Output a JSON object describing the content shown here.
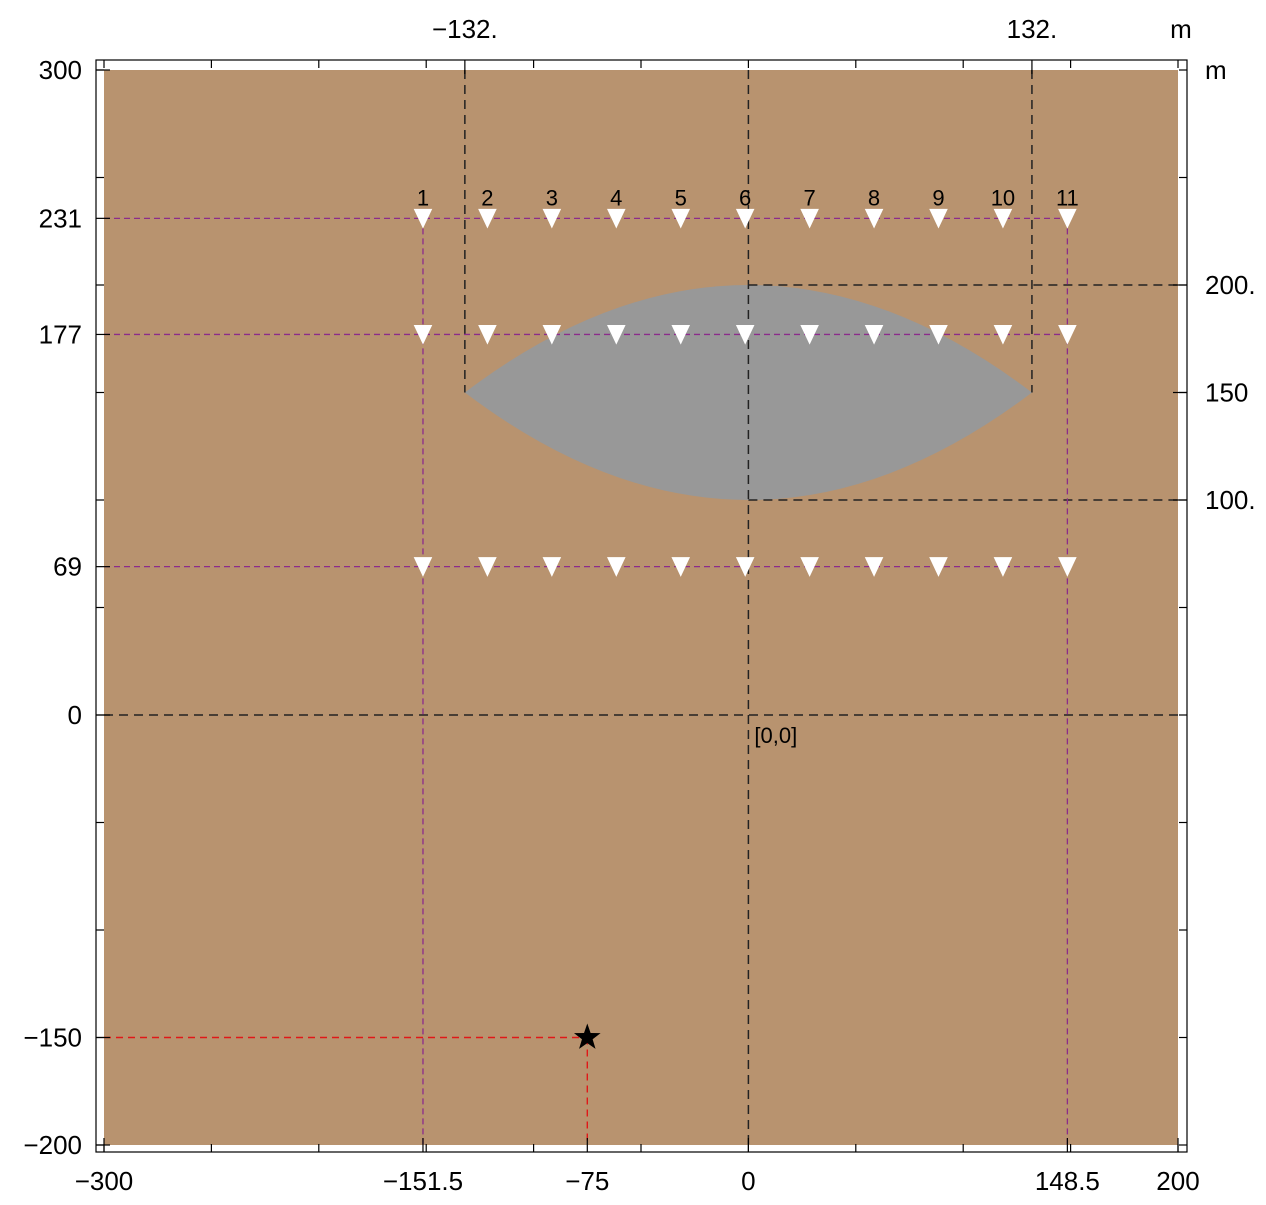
{
  "colors": {
    "ground": "#b8936f",
    "lens": "#989898",
    "grid_line": "#8b2c8b",
    "guide_line": "#222222",
    "source_line": "#e01818",
    "receiver_fill": "#ffffff",
    "source_mark": "#000000",
    "frame": "#000000"
  },
  "units": {
    "top": "m",
    "right": "m"
  },
  "axes": {
    "x_range": [
      -300,
      200
    ],
    "y_range": [
      -200,
      300
    ],
    "bottom_ticks": [
      {
        "value": -300,
        "label": "−300"
      },
      {
        "value": -151.5,
        "label": "−151.5"
      },
      {
        "value": -75,
        "label": "−75"
      },
      {
        "value": 0,
        "label": "0"
      },
      {
        "value": 148.5,
        "label": "148.5"
      },
      {
        "value": 200,
        "label": "200"
      }
    ],
    "left_ticks": [
      {
        "value": 300,
        "label": "300"
      },
      {
        "value": 231,
        "label": "231"
      },
      {
        "value": 177,
        "label": "177"
      },
      {
        "value": 69,
        "label": "69"
      },
      {
        "value": 0,
        "label": "0"
      },
      {
        "value": -150,
        "label": "−150"
      },
      {
        "value": -200,
        "label": "−200"
      }
    ],
    "top_ticks": [
      {
        "value": -132,
        "label": "−132."
      },
      {
        "value": 132,
        "label": "132."
      }
    ],
    "right_ticks": [
      {
        "value": 200,
        "label": "200."
      },
      {
        "value": 150,
        "label": "150"
      },
      {
        "value": 100,
        "label": "100."
      }
    ],
    "minor_step": 50
  },
  "lens_body": {
    "left_tip": [
      -132,
      150
    ],
    "right_tip": [
      132,
      150
    ],
    "top": 200,
    "bottom": 100
  },
  "receivers": {
    "columns_x": [
      -151.5,
      -121.5,
      -91.5,
      -61.5,
      -31.5,
      -1.5,
      28.5,
      58.5,
      88.5,
      118.5,
      148.5
    ],
    "rows_y": [
      231,
      177,
      69
    ],
    "column_labels": [
      "1",
      "2",
      "3",
      "4",
      "5",
      "6",
      "7",
      "8",
      "9",
      "10",
      "11"
    ]
  },
  "source": {
    "x": -75,
    "y": -150
  },
  "origin_label": "[0,0]"
}
